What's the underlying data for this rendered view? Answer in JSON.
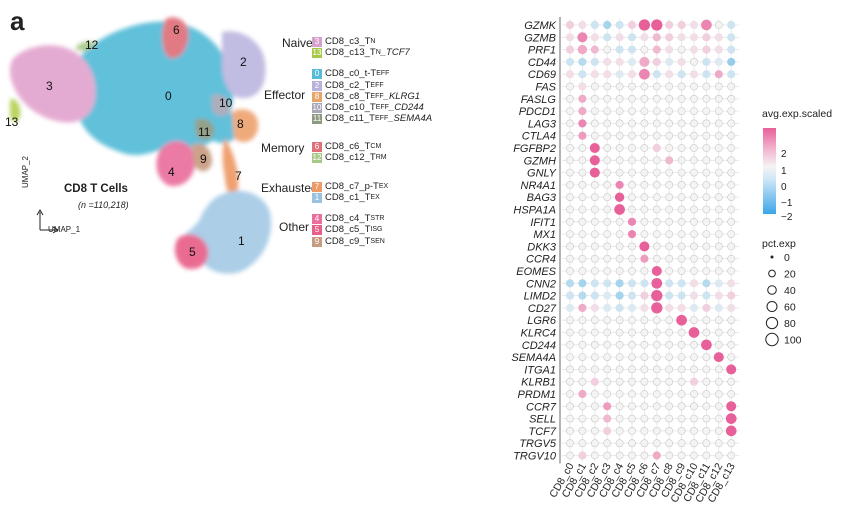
{
  "panel_letter": "a",
  "umap": {
    "title": "CD8 T Cells",
    "subtitle": "(n =110,218)",
    "axis_x": "UMAP_1",
    "axis_y": "UMAP_2",
    "cluster_labels": [
      "0",
      "1",
      "2",
      "3",
      "4",
      "5",
      "6",
      "7",
      "8",
      "9",
      "10",
      "11",
      "12",
      "13"
    ]
  },
  "legend_groups": [
    {
      "group": "Naive",
      "items": [
        {
          "num": "3",
          "base": "CD8_c3_T",
          "sub": "N",
          "tail": "",
          "color": "#d8a0cc"
        },
        {
          "num": "13",
          "base": "CD8_c13_T",
          "sub": "N",
          "tail": "_TCF7",
          "color": "#a8c84a"
        }
      ]
    },
    {
      "group": "Effector",
      "items": [
        {
          "num": "0",
          "base": "CD8_c0_t-T",
          "sub": "EFF",
          "tail": "",
          "color": "#56bcd8"
        },
        {
          "num": "2",
          "base": "CD8_c2_T",
          "sub": "EFF",
          "tail": "",
          "color": "#b9b3dc"
        },
        {
          "num": "8",
          "base": "CD8_c8_T",
          "sub": "EFF",
          "tail": "_KLRG1",
          "color": "#e9a46a"
        },
        {
          "num": "10",
          "base": "CD8_c10_T",
          "sub": "EFF",
          "tail": "_CD244",
          "color": "#a8a8b8"
        },
        {
          "num": "11",
          "base": "CD8_c11_T",
          "sub": "EFF",
          "tail": "_SEMA4A",
          "color": "#8c9a80"
        }
      ]
    },
    {
      "group": "Memory",
      "items": [
        {
          "num": "6",
          "base": "CD8_c6_T",
          "sub": "CM",
          "tail": "",
          "color": "#e0707a"
        },
        {
          "num": "12",
          "base": "CD8_c12_T",
          "sub": "RM",
          "tail": "",
          "color": "#a8c888"
        }
      ]
    },
    {
      "group": "Exhausted",
      "items": [
        {
          "num": "7",
          "base": "CD8_c7_p-T",
          "sub": "EX",
          "tail": "",
          "color": "#ee9a66"
        },
        {
          "num": "1",
          "base": "CD8_c1_T",
          "sub": "EX",
          "tail": "",
          "color": "#98c4e2"
        }
      ]
    },
    {
      "group": "Other",
      "items": [
        {
          "num": "4",
          "base": "CD8_c4_T",
          "sub": "STR",
          "tail": "",
          "color": "#ea6f9e"
        },
        {
          "num": "5",
          "base": "CD8_c5_T",
          "sub": "ISG",
          "tail": "",
          "color": "#e8608a"
        },
        {
          "num": "9",
          "base": "CD8_c9_T",
          "sub": "SEN",
          "tail": "",
          "color": "#c79c80"
        }
      ]
    }
  ],
  "chart_data": {
    "type": "dotplot",
    "genes": [
      "GZMK",
      "GZMB",
      "PRF1",
      "CD44",
      "CD69",
      "FAS",
      "FASLG",
      "PDCD1",
      "LAG3",
      "CTLA4",
      "FGFBP2",
      "GZMH",
      "GNLY",
      "NR4A1",
      "BAG3",
      "HSPA1A",
      "IFIT1",
      "MX1",
      "DKK3",
      "CCR4",
      "EOMES",
      "CNN2",
      "LIMD2",
      "CD27",
      "LGR6",
      "KLRC4",
      "CD244",
      "SEMA4A",
      "ITGA1",
      "KLRB1",
      "PRDM1",
      "CCR7",
      "SELL",
      "TCF7",
      "TRGV5",
      "TRGV10"
    ],
    "clusters": [
      "CD8_c0",
      "CD8_c1",
      "CD8_c2",
      "CD8_c3",
      "CD8_c4",
      "CD8_c5",
      "CD8_c6",
      "CD8_c7",
      "CD8_c8",
      "CD8_c9",
      "CD8_c10",
      "CD8_c11",
      "CD8_c12",
      "CD8_c13"
    ],
    "avg_exp_scaled": [
      [
        0.5,
        0.3,
        -0.5,
        -1,
        -0.5,
        0.5,
        2,
        2,
        0.5,
        0.5,
        0.3,
        1.5,
        0,
        -0.5
      ],
      [
        0.3,
        1.5,
        0.3,
        -0.5,
        0.3,
        -0.5,
        0.3,
        0.8,
        0.5,
        0.3,
        0.3,
        0.5,
        0.3,
        -0.5
      ],
      [
        0.5,
        1,
        0.8,
        0,
        -0.5,
        -0.5,
        0,
        0.8,
        0.3,
        0,
        0.3,
        0.5,
        0.3,
        -0.5
      ],
      [
        -0.5,
        -0.8,
        -0.5,
        0.3,
        0.3,
        -0.3,
        1,
        0.5,
        -0.3,
        0.3,
        0,
        -0.5,
        -0.3,
        -1.2
      ],
      [
        0.3,
        -0.5,
        0.3,
        0.3,
        -0.3,
        0.3,
        1.5,
        -0.5,
        0.3,
        -0.5,
        0.3,
        -0.5,
        1,
        -0.5
      ],
      [
        0,
        0.3,
        0,
        0,
        0,
        0,
        0,
        0,
        0,
        0,
        0,
        0,
        0,
        0
      ],
      [
        0,
        1,
        0,
        0,
        0,
        0,
        0,
        0,
        0,
        0,
        0,
        0,
        0,
        0
      ],
      [
        0,
        1,
        0,
        0,
        0,
        0,
        0,
        0,
        0,
        0,
        0,
        0,
        0,
        0
      ],
      [
        0,
        1.5,
        0,
        0,
        0,
        0,
        0,
        0,
        0,
        0,
        0,
        0,
        0,
        0
      ],
      [
        0,
        1.2,
        0,
        0,
        0,
        0,
        0,
        0,
        0,
        0,
        0,
        0,
        0,
        0
      ],
      [
        0,
        0,
        2,
        0,
        0,
        0,
        0,
        0.5,
        0,
        0,
        0,
        0,
        0,
        0
      ],
      [
        0,
        0,
        2,
        0,
        0,
        0,
        0,
        0,
        0.8,
        0,
        0,
        0,
        0,
        0
      ],
      [
        0,
        0,
        2,
        0,
        0,
        0,
        0,
        0,
        0,
        0,
        0,
        0,
        0,
        0
      ],
      [
        0,
        0,
        0,
        0,
        1.5,
        0,
        0,
        0,
        0,
        0,
        0,
        0,
        0,
        0
      ],
      [
        0,
        0,
        0,
        0,
        2,
        0,
        0,
        0,
        0,
        0,
        0,
        0,
        0,
        0
      ],
      [
        0,
        0,
        0,
        0,
        2,
        0,
        0,
        0,
        0,
        0,
        0,
        0,
        0,
        0
      ],
      [
        0,
        0,
        0,
        0,
        0,
        1.5,
        0,
        0,
        0,
        0,
        0,
        0,
        0,
        0
      ],
      [
        0,
        0,
        0,
        0,
        0,
        1.5,
        0,
        0,
        0,
        0,
        0,
        0,
        0,
        0
      ],
      [
        0,
        0,
        0,
        0,
        0,
        0,
        2,
        0,
        0,
        0,
        0,
        0,
        0,
        0
      ],
      [
        0,
        0,
        0,
        0,
        0,
        0,
        1.2,
        0,
        0,
        0,
        0,
        0,
        0,
        0
      ],
      [
        0,
        0,
        0,
        0,
        0,
        0,
        0,
        2,
        0,
        0,
        0,
        0,
        0,
        0
      ],
      [
        -0.8,
        -1,
        -0.5,
        -0.5,
        -1,
        -0.5,
        -0.5,
        2,
        -0.5,
        -0.5,
        0.3,
        -0.8,
        -0.3,
        0.3
      ],
      [
        -0.5,
        -0.8,
        -0.5,
        -0.3,
        -1,
        -0.5,
        0.5,
        2,
        -0.5,
        -0.5,
        0.3,
        -0.5,
        0.3,
        0.5
      ],
      [
        -0.3,
        1,
        0.3,
        -0.3,
        -0.5,
        -0.3,
        0.3,
        2,
        0.3,
        0.3,
        -0.3,
        0.5,
        -0.3,
        0.3
      ],
      [
        0,
        0,
        0,
        0,
        0,
        0,
        0,
        0,
        0,
        2,
        0,
        0,
        0,
        0
      ],
      [
        0,
        0,
        0,
        0,
        0,
        0,
        0,
        0,
        0,
        0,
        2,
        0,
        0,
        0
      ],
      [
        0,
        0,
        0,
        0,
        0,
        0,
        0,
        0,
        0,
        0,
        0,
        2,
        0,
        0
      ],
      [
        0,
        0,
        0,
        0,
        0,
        0,
        0,
        0,
        0,
        0,
        0,
        0,
        2,
        0
      ],
      [
        0,
        0,
        0,
        0,
        0,
        0,
        0,
        0,
        0,
        0,
        0,
        0,
        0,
        2
      ],
      [
        0,
        0,
        0.5,
        0,
        0,
        0,
        0,
        0,
        0,
        0,
        0.5,
        0,
        0,
        0
      ],
      [
        0,
        1,
        0,
        0,
        0,
        0,
        0,
        0,
        0,
        0,
        0,
        0,
        0,
        0
      ],
      [
        0,
        0,
        0,
        1.2,
        0,
        0,
        0,
        0,
        0,
        0,
        0,
        0,
        0,
        2
      ],
      [
        0,
        0,
        0,
        0.8,
        0,
        0,
        0,
        0,
        0,
        0,
        0,
        0,
        0,
        2
      ],
      [
        0,
        0,
        0,
        0.5,
        0,
        0,
        0,
        0,
        0,
        0,
        0,
        0,
        0,
        2
      ],
      [
        0,
        0,
        0,
        0,
        0,
        0,
        0,
        0,
        0,
        0,
        0,
        0,
        0,
        0
      ],
      [
        0,
        0.5,
        0,
        0,
        0,
        0,
        0,
        1,
        0,
        0,
        0,
        0,
        0,
        0
      ]
    ],
    "pct_exp_default": 25,
    "pct_exp_overrides": [
      [
        "GZMK",
        6,
        80
      ],
      [
        "GZMK",
        7,
        80
      ],
      [
        "GZMK",
        11,
        70
      ],
      [
        "GZMB",
        1,
        60
      ],
      [
        "PRF1",
        1,
        50
      ],
      [
        "CD44",
        6,
        60
      ],
      [
        "CD69",
        6,
        70
      ],
      [
        "FGFBP2",
        2,
        60
      ],
      [
        "GZMH",
        2,
        60
      ],
      [
        "GNLY",
        2,
        60
      ],
      [
        "BAG3",
        4,
        50
      ],
      [
        "HSPA1A",
        4,
        70
      ],
      [
        "DKK3",
        6,
        60
      ],
      [
        "EOMES",
        7,
        60
      ],
      [
        "CNN2",
        7,
        70
      ],
      [
        "LIMD2",
        7,
        80
      ],
      [
        "CD27",
        7,
        80
      ],
      [
        "LGR6",
        9,
        70
      ],
      [
        "KLRC4",
        10,
        70
      ],
      [
        "CD244",
        11,
        70
      ],
      [
        "SEMA4A",
        12,
        60
      ],
      [
        "ITGA1",
        13,
        60
      ],
      [
        "CCR7",
        13,
        60
      ],
      [
        "SELL",
        13,
        70
      ],
      [
        "TCF7",
        13,
        70
      ]
    ],
    "color_legend": {
      "title": "avg.exp.scaled",
      "ticks": [
        "2",
        "1",
        "0",
        "−1",
        "−2"
      ],
      "range": [
        -2,
        2.5
      ]
    },
    "size_legend": {
      "title": "pct.exp",
      "ticks": [
        "0",
        "20",
        "40",
        "60",
        "80",
        "100"
      ]
    },
    "colors": {
      "high": "#e8609a",
      "mid": "#f4f4f4",
      "low": "#5ab4e6"
    }
  }
}
